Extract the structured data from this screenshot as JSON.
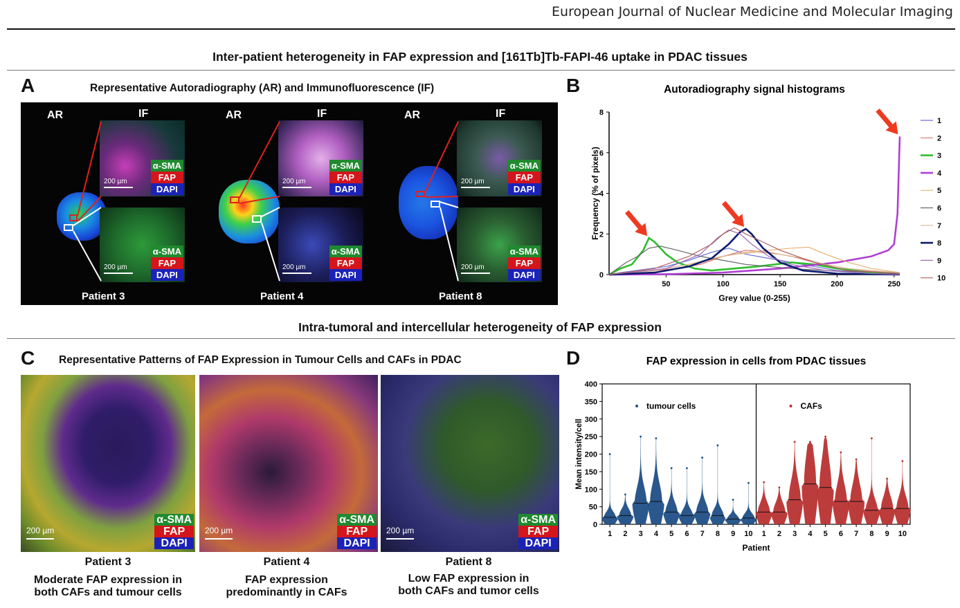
{
  "header": {
    "journal": "European Journal of Nuclear Medicine and Molecular Imaging"
  },
  "sections": {
    "top_title": "Inter-patient heterogeneity in FAP expression and [161Tb]Tb-FAPI-46 uptake in PDAC tissues",
    "middle_title": "Intra-tumoral and intercellular heterogeneity of FAP expression"
  },
  "panelA": {
    "letter": "A",
    "title": "Representative Autoradiography (AR) and Immunofluorescence (IF)",
    "ar_label": "AR",
    "if_label": "IF",
    "patients": [
      "Patient 3",
      "Patient 4",
      "Patient 8"
    ],
    "stain": {
      "sma": "α-SMA",
      "fap": "FAP",
      "dapi": "DAPI"
    },
    "scale_label": "200 µm"
  },
  "panelB": {
    "letter": "B"
  },
  "panelC": {
    "letter": "C",
    "title": "Representative Patterns of FAP Expression in Tumour Cells and CAFs in PDAC",
    "scale_label": "200 µm",
    "stain": {
      "sma": "α-SMA",
      "fap": "FAP",
      "dapi": "DAPI"
    },
    "captions": [
      {
        "patient": "Patient 3",
        "line1": "Moderate FAP expression in",
        "line2": "both CAFs and tumour cells"
      },
      {
        "patient": "Patient 4",
        "line1": "FAP expression",
        "line2": "predominantly in CAFs"
      },
      {
        "patient": "Patient 8",
        "line1": "Low FAP expression in",
        "line2": "both CAFs and tumor cells"
      }
    ]
  },
  "panelD": {
    "letter": "D"
  },
  "chart_data": [
    {
      "type": "line",
      "title": "Autoradiography signal histograms",
      "xlabel": "Grey value (0-255)",
      "ylabel": "Frequency (% of pixels)",
      "xlim": [
        0,
        255
      ],
      "ylim": [
        0,
        8
      ],
      "xticks": [
        50,
        100,
        150,
        200,
        250
      ],
      "yticks": [
        0,
        2,
        4,
        6,
        8
      ],
      "legend_position": "right",
      "annotations": [
        "arrow at peak of series 3",
        "arrow at peak of series 8",
        "arrow at peak of series 4"
      ],
      "series": [
        {
          "name": "1",
          "color": "#6b6fd6",
          "x": [
            0,
            10,
            30,
            50,
            70,
            90,
            105,
            120,
            140,
            160,
            180,
            200,
            230,
            255
          ],
          "y": [
            0,
            0.1,
            0.25,
            0.4,
            0.7,
            1.1,
            1.3,
            1.0,
            0.8,
            0.6,
            0.4,
            0.2,
            0.1,
            0.05
          ]
        },
        {
          "name": "2",
          "color": "#e07070",
          "x": [
            0,
            20,
            40,
            60,
            80,
            100,
            120,
            140,
            160,
            180,
            200,
            230,
            255
          ],
          "y": [
            0,
            0.1,
            0.2,
            0.3,
            0.5,
            0.9,
            1.2,
            1.1,
            0.9,
            0.6,
            0.3,
            0.15,
            0.1
          ]
        },
        {
          "name": "3",
          "color": "#2ebd2e",
          "x": [
            0,
            10,
            20,
            30,
            35,
            40,
            50,
            60,
            75,
            90,
            110,
            130,
            160,
            180,
            200,
            230,
            255
          ],
          "y": [
            0,
            0.3,
            0.5,
            1.2,
            1.8,
            1.6,
            1.0,
            0.6,
            0.3,
            0.2,
            0.3,
            0.4,
            0.6,
            0.5,
            0.3,
            0.1,
            0.05
          ]
        },
        {
          "name": "4",
          "color": "#b03fd2",
          "x": [
            0,
            50,
            100,
            150,
            200,
            230,
            245,
            250,
            253,
            255
          ],
          "y": [
            0,
            0.02,
            0.1,
            0.3,
            0.6,
            0.9,
            1.2,
            1.5,
            3.0,
            6.8
          ]
        },
        {
          "name": "5",
          "color": "#e8b070",
          "x": [
            0,
            40,
            80,
            100,
            120,
            140,
            160,
            175,
            190,
            210,
            230,
            255
          ],
          "y": [
            0,
            0.2,
            0.6,
            0.9,
            1.1,
            1.2,
            1.3,
            1.35,
            1.0,
            0.6,
            0.3,
            0.1
          ]
        },
        {
          "name": "6",
          "color": "#666666",
          "x": [
            0,
            15,
            25,
            35,
            45,
            60,
            80,
            100,
            120,
            140,
            160,
            190,
            220,
            255
          ],
          "y": [
            0,
            0.6,
            0.9,
            1.3,
            1.4,
            1.2,
            0.9,
            0.7,
            0.5,
            0.4,
            0.3,
            0.2,
            0.15,
            0.1
          ]
        },
        {
          "name": "7",
          "color": "#d6b890",
          "x": [
            0,
            40,
            70,
            90,
            110,
            130,
            150,
            170,
            190,
            210,
            240,
            255
          ],
          "y": [
            0,
            0.2,
            0.5,
            0.8,
            1.0,
            1.1,
            1.0,
            0.8,
            0.5,
            0.3,
            0.15,
            0.1
          ]
        },
        {
          "name": "8",
          "color": "#0b1a6e",
          "x": [
            0,
            40,
            70,
            90,
            105,
            115,
            120,
            125,
            135,
            150,
            170,
            200,
            255
          ],
          "y": [
            0,
            0.1,
            0.4,
            0.8,
            1.5,
            2.1,
            2.25,
            2.0,
            1.3,
            0.6,
            0.2,
            0.05,
            0
          ]
        },
        {
          "name": "9",
          "color": "#9a6bb8",
          "x": [
            0,
            50,
            80,
            95,
            105,
            115,
            125,
            140,
            160,
            190,
            230,
            255
          ],
          "y": [
            0,
            0.3,
            1.0,
            1.8,
            2.2,
            2.0,
            1.5,
            0.9,
            0.5,
            0.2,
            0.05,
            0
          ]
        },
        {
          "name": "10",
          "color": "#b06060",
          "x": [
            0,
            40,
            70,
            90,
            100,
            110,
            120,
            135,
            150,
            180,
            210,
            255
          ],
          "y": [
            0,
            0.3,
            0.9,
            1.5,
            2.0,
            2.3,
            2.0,
            1.6,
            1.2,
            0.6,
            0.2,
            0.05
          ]
        }
      ]
    },
    {
      "type": "scatter",
      "title": "FAP expression in cells from PDAC tissues",
      "xlabel": "Patient",
      "ylabel": "Mean intensity/cell",
      "ylim": [
        0,
        400
      ],
      "yticks": [
        0,
        50,
        100,
        150,
        200,
        250,
        300,
        350,
        400
      ],
      "categories": [
        "1",
        "2",
        "3",
        "4",
        "5",
        "6",
        "7",
        "8",
        "9",
        "10"
      ],
      "groups": [
        {
          "name": "tumour cells",
          "color": "#1f4e86",
          "max": [
            200,
            85,
            250,
            245,
            160,
            160,
            190,
            225,
            70,
            118
          ],
          "median": [
            20,
            25,
            60,
            65,
            35,
            25,
            35,
            25,
            15,
            18
          ]
        },
        {
          "name": "CAFs",
          "color": "#b83232",
          "max": [
            120,
            105,
            235,
            235,
            250,
            205,
            185,
            245,
            130,
            180
          ],
          "median": [
            35,
            35,
            70,
            115,
            105,
            65,
            65,
            40,
            45,
            45
          ]
        }
      ]
    }
  ]
}
